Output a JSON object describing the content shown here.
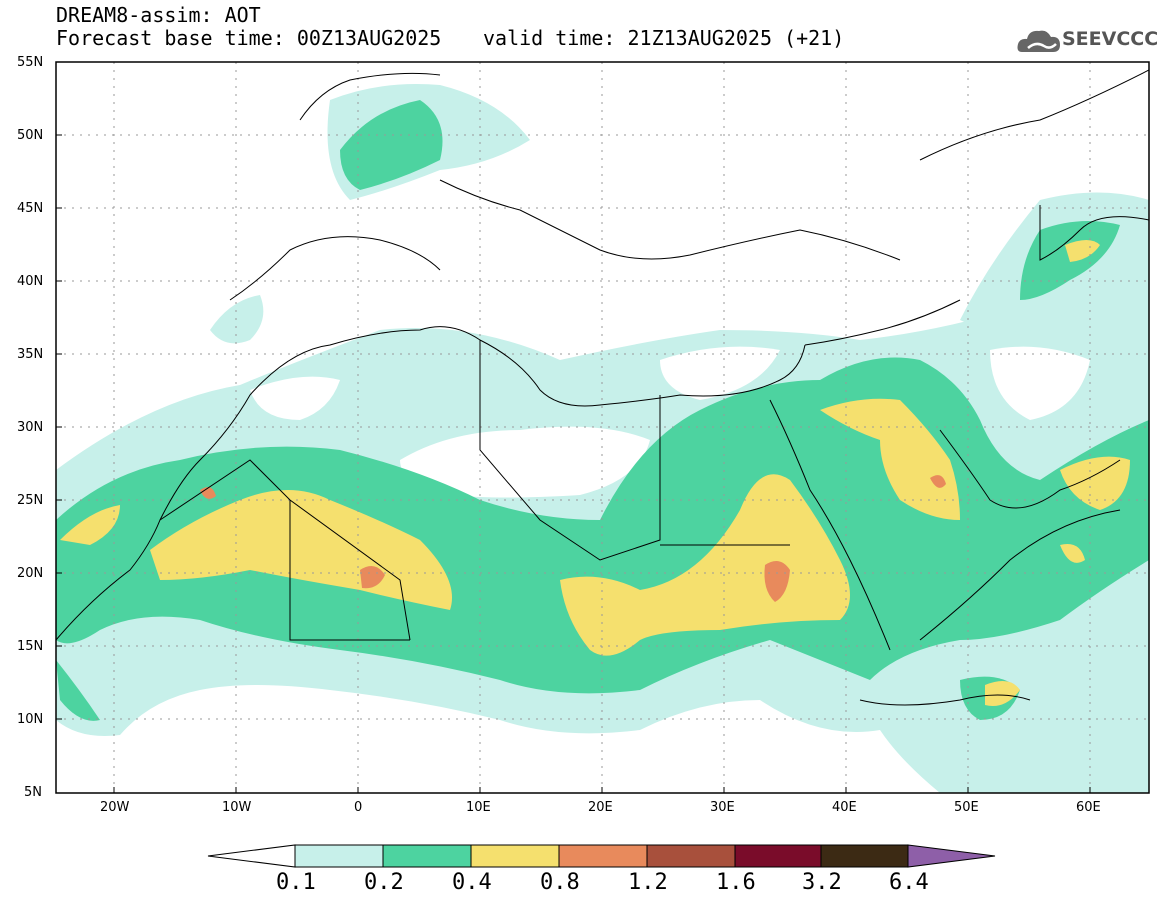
{
  "header": {
    "title_line1": "DREAM8-assim: AOT",
    "base_time": "Forecast base time: 00Z13AUG2025",
    "valid_time": "valid time: 21Z13AUG2025 (+21)",
    "logo_text": "SEEVCCC",
    "logo_icon": "cloud-logo-icon"
  },
  "axes": {
    "lat_labels": [
      "55N",
      "50N",
      "45N",
      "40N",
      "35N",
      "30N",
      "25N",
      "20N",
      "15N",
      "10N",
      "5N"
    ],
    "lon_labels": [
      "20W",
      "10W",
      "0",
      "10E",
      "20E",
      "30E",
      "40E",
      "50E",
      "60E"
    ]
  },
  "colorbar": {
    "labels": [
      "0.1",
      "0.2",
      "0.4",
      "0.8",
      "1.2",
      "1.6",
      "3.2",
      "6.4"
    ],
    "colors": [
      "#c7f0ea",
      "#4dd3a0",
      "#f5e06e",
      "#e88a5c",
      "#a8503c",
      "#7a0c2a",
      "#3c2a14",
      "#8e5fa8"
    ]
  }
}
